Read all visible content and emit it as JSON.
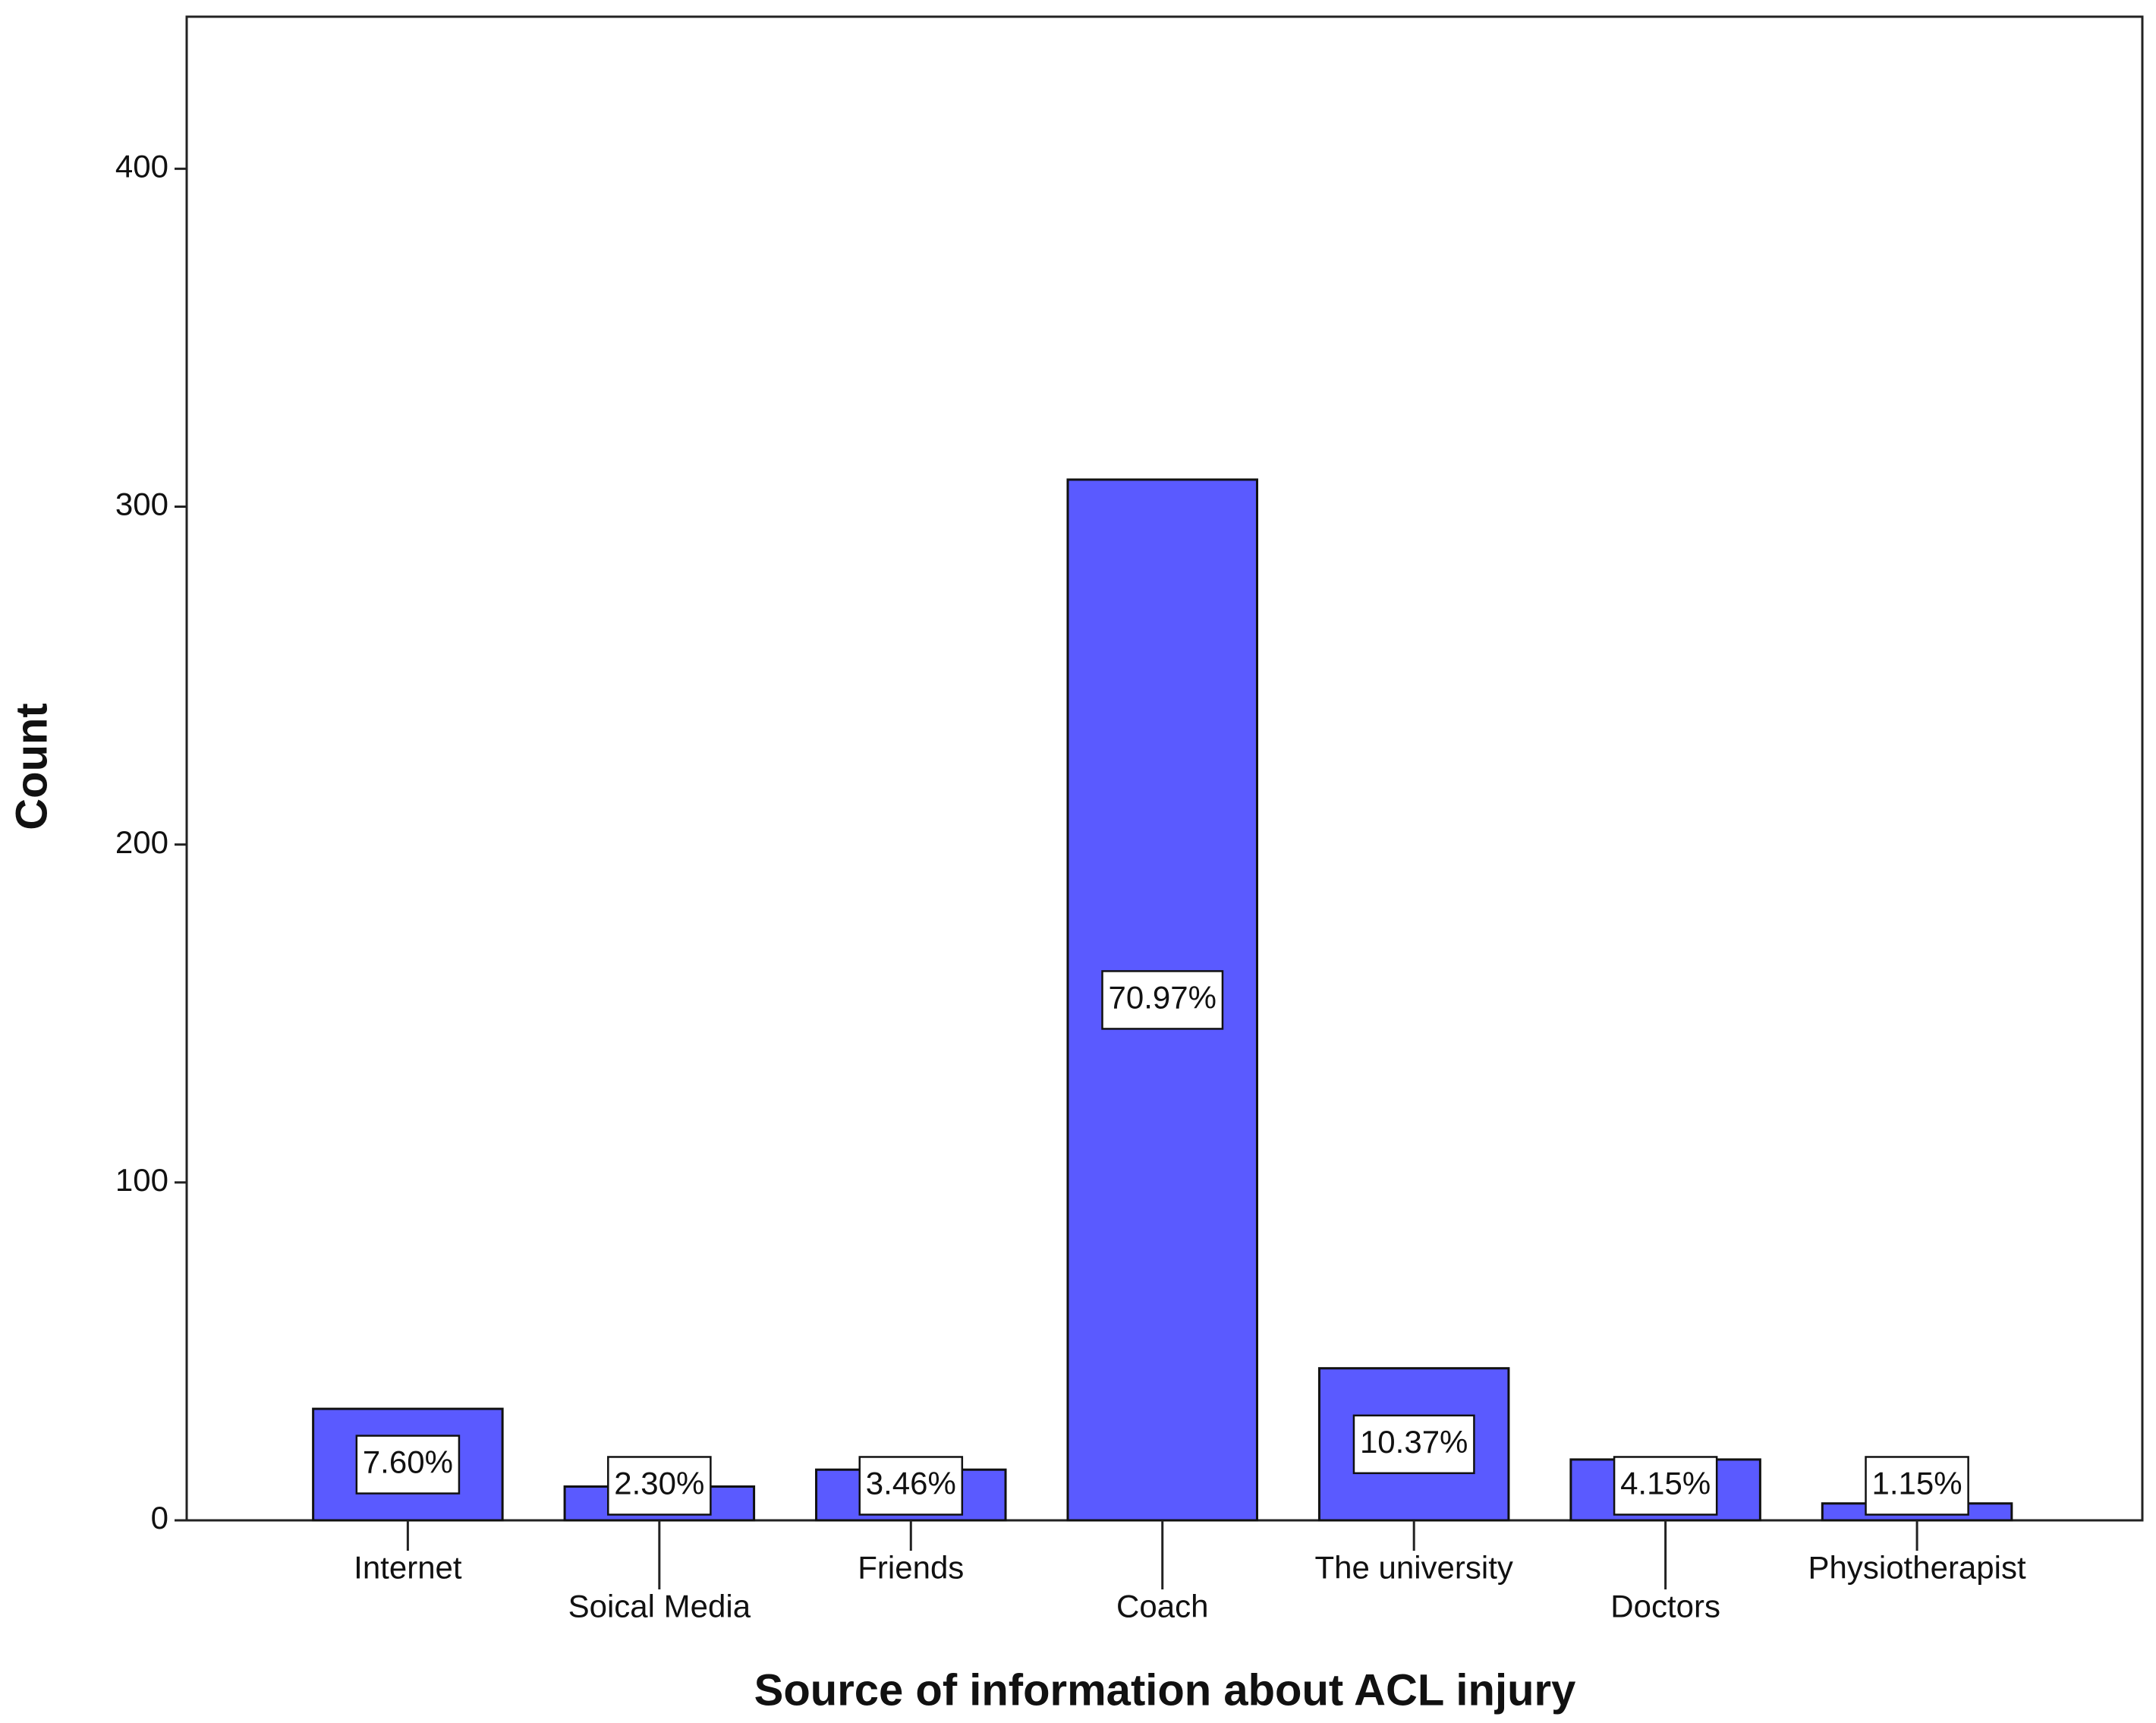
{
  "chart_data": {
    "type": "bar",
    "x_label": "Source of information about ACL injury",
    "y_label": "Count",
    "categories": [
      "Internet",
      "Soical Media",
      "Friends",
      "Coach",
      "The university",
      "Doctors",
      "Physiotherapist"
    ],
    "values": [
      33,
      10,
      15,
      308,
      45,
      18,
      5
    ],
    "percent_labels": [
      "7.60%",
      "2.30%",
      "3.46%",
      "70.97%",
      "10.37%",
      "4.15%",
      "1.15%"
    ],
    "color": "#5a5aff",
    "ylim": [
      0,
      445
    ],
    "yticks": [
      0,
      100,
      200,
      300,
      400
    ]
  }
}
